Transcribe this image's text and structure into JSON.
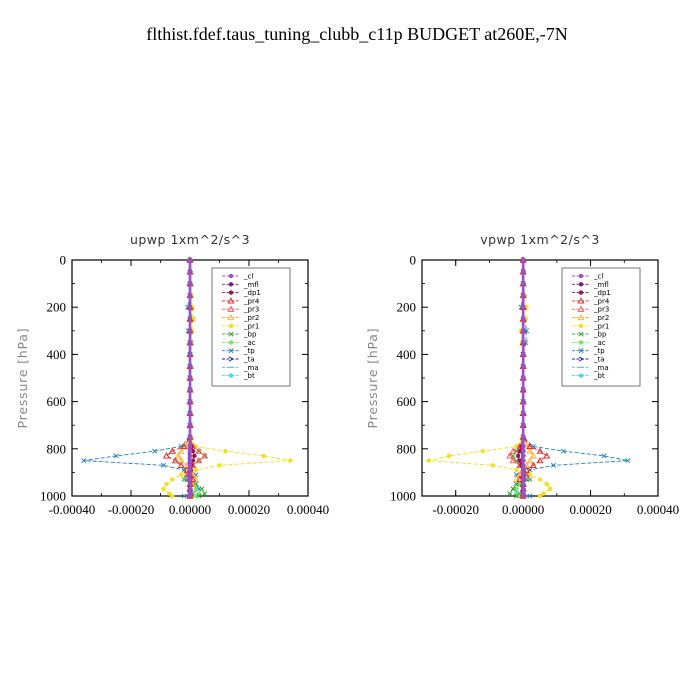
{
  "title": "flthist.fdef.taus_tuning_clubb_c11p  BUDGET at260E,-7N",
  "series_styles": [
    {
      "name": "_cl",
      "color": "#9a50c8",
      "marker": "circle"
    },
    {
      "name": "_mfl",
      "color": "#7a1e7a",
      "marker": "circle"
    },
    {
      "name": "_dp1",
      "color": "#a01050",
      "marker": "circle"
    },
    {
      "name": "_pr4",
      "color": "#e02020",
      "marker": "tri"
    },
    {
      "name": "_pr3",
      "color": "#ff5050",
      "marker": "tri"
    },
    {
      "name": "_pr2",
      "color": "#ffb030",
      "marker": "tri"
    },
    {
      "name": "_pr1",
      "color": "#f0e020",
      "marker": "circle"
    },
    {
      "name": "_bp",
      "color": "#30a030",
      "marker": "x"
    },
    {
      "name": "_ac",
      "color": "#70f060",
      "marker": "circle"
    },
    {
      "name": "_tp",
      "color": "#2080c0",
      "marker": "x"
    },
    {
      "name": "_ta",
      "color": "#2020c0",
      "marker": "arrow"
    },
    {
      "name": "_ma",
      "color": "#60b0d0",
      "marker": "dash"
    },
    {
      "name": "_bt",
      "color": "#40e0e0",
      "marker": "circle"
    }
  ],
  "chart_data": [
    {
      "type": "line",
      "title": "upwp   1xm^2/s^3",
      "ylabel": "Pressure [hPa]",
      "xlim": [
        -0.0004,
        0.0004
      ],
      "ylim": [
        1000,
        0
      ],
      "xticks": [
        "-0.00040",
        "-0.00020",
        "0.00000",
        "0.00020",
        "0.00040"
      ],
      "xtick_values": [
        -0.0004,
        -0.0002,
        0,
        0.0002,
        0.0004
      ],
      "yticks": [
        0,
        200,
        400,
        600,
        800,
        1000
      ],
      "legend_position": "top-right",
      "pressure": [
        0,
        50,
        100,
        150,
        200,
        250,
        300,
        350,
        400,
        450,
        500,
        550,
        600,
        650,
        700,
        750,
        790,
        810,
        830,
        850,
        870,
        890,
        910,
        930,
        950,
        970,
        990,
        1000
      ],
      "series": [
        {
          "name": "_cl",
          "values": [
            0,
            0,
            0,
            0,
            0,
            0,
            0,
            0,
            0,
            0,
            0,
            0,
            0,
            0,
            0,
            0,
            0,
            0,
            0,
            0,
            0,
            0,
            0,
            0,
            0,
            0,
            0,
            0
          ]
        },
        {
          "name": "_mfl",
          "values": [
            0,
            0,
            0,
            0,
            0,
            0,
            0,
            0,
            0,
            0,
            0,
            0,
            0,
            0,
            0,
            0,
            0,
            0,
            0,
            0,
            0,
            0,
            0,
            0,
            0,
            0,
            0,
            0
          ]
        },
        {
          "name": "_dp1",
          "values": [
            0,
            0,
            0,
            0,
            0,
            0,
            0,
            0,
            0,
            0,
            0,
            0,
            0,
            0,
            0,
            0,
            5e-06,
            1e-05,
            1.5e-05,
            1e-05,
            5e-06,
            3e-06,
            0,
            0,
            0,
            0,
            0,
            0
          ]
        },
        {
          "name": "_pr4",
          "values": [
            0,
            0,
            0,
            0,
            0,
            0,
            0,
            0,
            0,
            0,
            0,
            0,
            0,
            0,
            0,
            0,
            -2e-05,
            -6e-05,
            -8e-05,
            -5e-05,
            -3e-05,
            -1e-05,
            0,
            1e-05,
            0,
            0,
            0,
            0
          ]
        },
        {
          "name": "_pr3",
          "values": [
            0,
            0,
            0,
            0,
            0,
            0,
            0,
            0,
            0,
            0,
            0,
            0,
            0,
            0,
            0,
            0,
            1e-05,
            3e-05,
            5e-05,
            3e-05,
            1e-05,
            0,
            -1e-05,
            0,
            0,
            0,
            0,
            0
          ]
        },
        {
          "name": "_pr2",
          "values": [
            0,
            0,
            0,
            0,
            0,
            0,
            0,
            0,
            0,
            0,
            0,
            0,
            0,
            0,
            0,
            0,
            -1e-05,
            -3e-05,
            -4e-05,
            -3e-05,
            -1e-05,
            0,
            1e-05,
            2e-05,
            1e-05,
            0,
            0,
            0
          ]
        },
        {
          "name": "_pr1",
          "values": [
            0,
            0,
            0,
            3e-06,
            8e-06,
            1e-05,
            6e-06,
            2e-06,
            0,
            0,
            0,
            0,
            0,
            0,
            0,
            0,
            2e-05,
            0.00012,
            0.00025,
            0.00034,
            0.0001,
            2e-05,
            -3e-05,
            -6e-05,
            -8e-05,
            -9e-05,
            -7e-05,
            -6e-05
          ]
        },
        {
          "name": "_bp",
          "values": [
            0,
            0,
            0,
            0,
            0,
            0,
            0,
            0,
            0,
            0,
            0,
            0,
            0,
            0,
            0,
            0,
            1e-05,
            3e-05,
            5e-05,
            3e-05,
            1e-05,
            0,
            -1e-05,
            -2e-05,
            2e-05,
            4e-05,
            5e-05,
            3e-05
          ]
        },
        {
          "name": "_ac",
          "values": [
            0,
            0,
            0,
            0,
            0,
            0,
            0,
            0,
            0,
            0,
            0,
            0,
            0,
            0,
            0,
            0,
            0,
            0,
            0,
            0,
            0,
            0,
            0,
            0,
            1e-05,
            2e-05,
            3e-05,
            2e-05
          ]
        },
        {
          "name": "_tp",
          "values": [
            0,
            0,
            0,
            0,
            -8e-06,
            1e-05,
            -6e-06,
            4e-06,
            0,
            0,
            0,
            0,
            0,
            0,
            0,
            0,
            -3e-05,
            -0.00012,
            -0.00025,
            -0.00036,
            -9e-05,
            -2e-05,
            2e-05,
            -1e-05,
            2e-05,
            3e-05,
            1e-05,
            -2e-05
          ]
        },
        {
          "name": "_ta",
          "values": [
            0,
            0,
            0,
            0,
            0,
            0,
            0,
            0,
            0,
            0,
            0,
            0,
            0,
            0,
            0,
            0,
            0,
            0,
            0,
            0,
            0,
            0,
            0,
            0,
            0,
            0,
            0,
            0
          ]
        },
        {
          "name": "_ma",
          "values": [
            0,
            0,
            0,
            0,
            0,
            0,
            0,
            0,
            0,
            0,
            0,
            0,
            0,
            0,
            0,
            0,
            0,
            0,
            0,
            0,
            0,
            0,
            0,
            0,
            0,
            0,
            0,
            0
          ]
        },
        {
          "name": "_bt",
          "values": [
            0,
            0,
            0,
            0,
            0,
            0,
            0,
            0,
            0,
            0,
            0,
            0,
            0,
            0,
            0,
            0,
            0,
            0,
            0,
            0,
            0,
            0,
            0,
            0,
            0,
            0,
            0,
            0
          ]
        }
      ]
    },
    {
      "type": "line",
      "title": "vpwp   1xm^2/s^3",
      "ylabel": "Pressure [hPa]",
      "xlim": [
        -0.0003,
        0.0004
      ],
      "ylim": [
        1000,
        0
      ],
      "xticks": [
        "-0.00020",
        "0.00000",
        "0.00020",
        "0.00040"
      ],
      "xtick_values": [
        -0.0002,
        0,
        0.0002,
        0.0004
      ],
      "yticks": [
        0,
        200,
        400,
        600,
        800,
        1000
      ],
      "legend_position": "top-right",
      "pressure": [
        0,
        50,
        100,
        150,
        200,
        250,
        300,
        350,
        400,
        450,
        500,
        550,
        600,
        650,
        700,
        750,
        790,
        810,
        830,
        850,
        870,
        890,
        910,
        930,
        950,
        970,
        990,
        1000
      ],
      "series": [
        {
          "name": "_cl",
          "values": [
            0,
            0,
            0,
            0,
            0,
            0,
            0,
            0,
            0,
            0,
            0,
            0,
            0,
            0,
            0,
            0,
            0,
            0,
            0,
            0,
            0,
            0,
            0,
            0,
            0,
            0,
            0,
            0
          ]
        },
        {
          "name": "_mfl",
          "values": [
            0,
            0,
            0,
            0,
            0,
            0,
            0,
            0,
            0,
            0,
            0,
            0,
            0,
            0,
            0,
            0,
            0,
            0,
            0,
            0,
            0,
            0,
            0,
            0,
            0,
            0,
            0,
            0
          ]
        },
        {
          "name": "_dp1",
          "values": [
            0,
            0,
            0,
            0,
            0,
            0,
            0,
            0,
            0,
            0,
            0,
            0,
            0,
            0,
            0,
            0,
            -5e-06,
            -1e-05,
            -1.5e-05,
            -1e-05,
            -5e-06,
            0,
            0,
            0,
            0,
            0,
            0,
            0
          ]
        },
        {
          "name": "_pr4",
          "values": [
            0,
            0,
            0,
            0,
            0,
            0,
            0,
            0,
            0,
            0,
            0,
            0,
            0,
            0,
            0,
            0,
            2e-05,
            5e-05,
            7e-05,
            5e-05,
            3e-05,
            1e-05,
            0,
            -1e-05,
            0,
            0,
            0,
            0
          ]
        },
        {
          "name": "_pr3",
          "values": [
            0,
            0,
            0,
            0,
            0,
            0,
            0,
            0,
            0,
            0,
            0,
            0,
            0,
            0,
            0,
            0,
            -1e-05,
            -3e-05,
            -4e-05,
            -3e-05,
            -1e-05,
            0,
            1e-05,
            0,
            0,
            0,
            0,
            0
          ]
        },
        {
          "name": "_pr2",
          "values": [
            0,
            0,
            0,
            0,
            0,
            0,
            0,
            0,
            0,
            0,
            0,
            0,
            0,
            0,
            0,
            0,
            1e-05,
            2e-05,
            3e-05,
            2e-05,
            1e-05,
            0,
            -1e-05,
            -2e-05,
            0,
            0,
            0,
            0
          ]
        },
        {
          "name": "_pr1",
          "values": [
            0,
            0,
            0,
            5e-06,
            1e-05,
            8e-06,
            -6e-06,
            -3e-06,
            0,
            0,
            0,
            0,
            0,
            0,
            0,
            0,
            -2e-05,
            -0.00012,
            -0.00022,
            -0.00028,
            -9e-05,
            -2e-05,
            2e-05,
            5e-05,
            7e-05,
            8e-05,
            6e-05,
            5e-05
          ]
        },
        {
          "name": "_bp",
          "values": [
            0,
            0,
            0,
            0,
            0,
            0,
            0,
            0,
            0,
            0,
            0,
            0,
            0,
            0,
            0,
            0,
            -1e-05,
            -2e-05,
            -3e-05,
            -2e-05,
            -1e-05,
            0,
            1e-05,
            2e-05,
            -2e-05,
            -3e-05,
            -4e-05,
            -2e-05
          ]
        },
        {
          "name": "_ac",
          "values": [
            0,
            0,
            0,
            0,
            0,
            0,
            0,
            0,
            0,
            0,
            0,
            0,
            0,
            0,
            0,
            0,
            0,
            0,
            0,
            0,
            0,
            0,
            0,
            0,
            -1e-05,
            -2e-05,
            -2e-05,
            -1e-05
          ]
        },
        {
          "name": "_tp",
          "values": [
            0,
            0,
            0,
            0,
            -6e-06,
            5e-06,
            1e-05,
            8e-06,
            0,
            0,
            0,
            0,
            0,
            0,
            0,
            0,
            3e-05,
            0.00012,
            0.00024,
            0.00031,
            9e-05,
            2e-05,
            -2e-05,
            1e-05,
            -2e-05,
            -3e-05,
            -1e-05,
            2e-05
          ]
        },
        {
          "name": "_ta",
          "values": [
            0,
            0,
            0,
            0,
            0,
            0,
            0,
            0,
            0,
            0,
            0,
            0,
            0,
            0,
            0,
            0,
            0,
            0,
            0,
            0,
            0,
            0,
            0,
            0,
            0,
            0,
            0,
            0
          ]
        },
        {
          "name": "_ma",
          "values": [
            0,
            0,
            0,
            0,
            0,
            0,
            0,
            0,
            0,
            0,
            0,
            0,
            0,
            0,
            0,
            0,
            0,
            0,
            0,
            0,
            0,
            0,
            0,
            0,
            0,
            0,
            0,
            0
          ]
        },
        {
          "name": "_bt",
          "values": [
            0,
            0,
            0,
            0,
            0,
            0,
            0,
            0,
            0,
            0,
            0,
            0,
            0,
            0,
            0,
            0,
            0,
            0,
            0,
            0,
            0,
            0,
            0,
            0,
            0,
            0,
            0,
            0
          ]
        }
      ]
    }
  ]
}
